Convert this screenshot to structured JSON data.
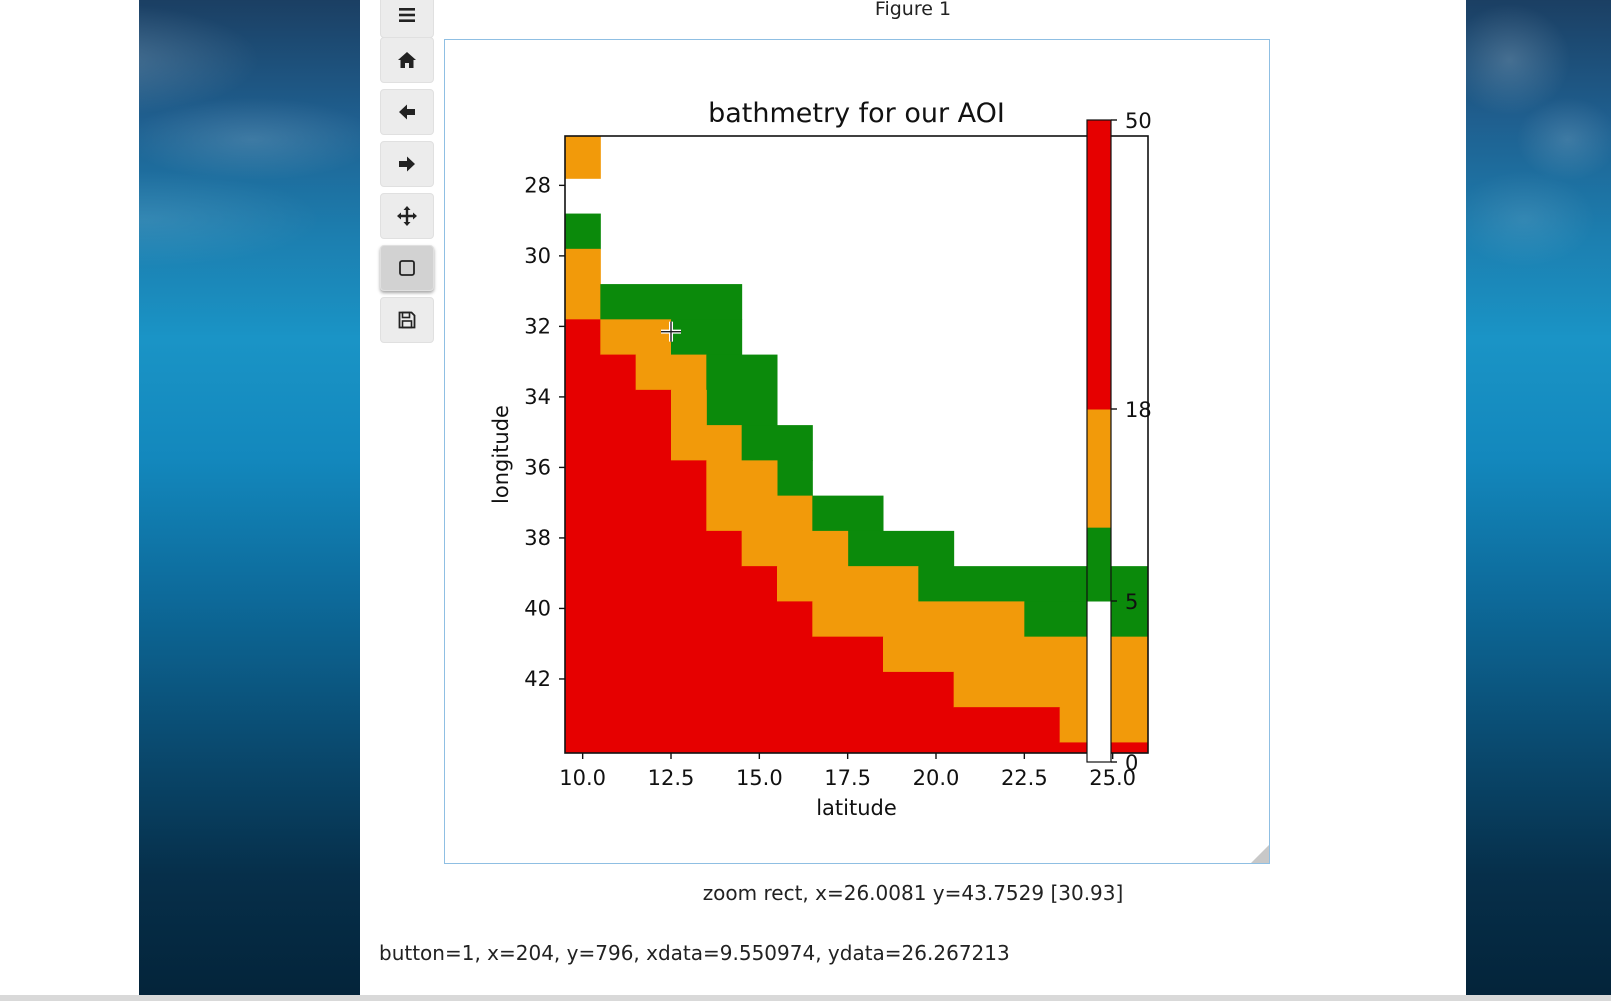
{
  "figure": {
    "title": "Figure 1",
    "zoom_status": "zoom rect, x=26.0081 y=43.7529 [30.93]",
    "event_line": "button=1, x=204, y=796, xdata=9.550974, ydata=26.267213"
  },
  "toolbar": {
    "buttons": [
      {
        "name": "menu",
        "icon": "menu-icon"
      },
      {
        "name": "home",
        "icon": "home-icon"
      },
      {
        "name": "back",
        "icon": "arrow-left-icon"
      },
      {
        "name": "forward",
        "icon": "arrow-right-icon"
      },
      {
        "name": "pan",
        "icon": "move-icon"
      },
      {
        "name": "zoom",
        "icon": "zoom-rect-icon",
        "active": true
      },
      {
        "name": "save",
        "icon": "save-icon"
      }
    ]
  },
  "colors": {
    "red": "#e60000",
    "orange": "#f29a0a",
    "green": "#0b8a0b",
    "white": "#ffffff",
    "accent_border": "#8fbfe3"
  },
  "chart_data": {
    "type": "heatmap",
    "title": "bathmetry for our AOI",
    "xlabel": "latitude",
    "ylabel": "longitude",
    "xlim": [
      9.5,
      26.0
    ],
    "ylim": [
      44.1,
      26.6
    ],
    "xticks": [
      10.0,
      12.5,
      15.0,
      17.5,
      20.0,
      22.5,
      25.0
    ],
    "xtick_labels": [
      "10.0",
      "12.5",
      "15.0",
      "17.5",
      "20.0",
      "22.5",
      "25.0"
    ],
    "yticks": [
      28,
      30,
      32,
      34,
      36,
      38,
      40,
      42
    ],
    "ytick_labels": [
      "28",
      "30",
      "32",
      "34",
      "36",
      "38",
      "40",
      "42"
    ],
    "category_colors": {
      "land": "#ffffff",
      "shallow": "#0b8a0b",
      "medium": "#f29a0a",
      "deep": "#e60000"
    },
    "regions": [
      {
        "cls": "medium",
        "x": [
          9.5,
          10.5
        ],
        "y": [
          26.6,
          27.8
        ]
      },
      {
        "cls": "shallow",
        "x": [
          9.5,
          10.5
        ],
        "y": [
          28.8,
          29.8
        ]
      },
      {
        "cls": "medium",
        "x": [
          9.5,
          10.5
        ],
        "y": [
          29.8,
          31.8
        ]
      },
      {
        "cls": "deep",
        "x": [
          9.5,
          10.5
        ],
        "y": [
          31.8,
          44.1
        ]
      },
      {
        "cls": "shallow",
        "x": [
          10.5,
          14.5
        ],
        "y": [
          30.8,
          31.8
        ]
      },
      {
        "cls": "medium",
        "x": [
          10.5,
          12.5
        ],
        "y": [
          31.8,
          32.8
        ]
      },
      {
        "cls": "deep",
        "x": [
          10.5,
          11.5
        ],
        "y": [
          32.8,
          44.1
        ]
      },
      {
        "cls": "shallow",
        "x": [
          12.5,
          14.5
        ],
        "y": [
          31.8,
          32.8
        ]
      },
      {
        "cls": "medium",
        "x": [
          11.5,
          13.5
        ],
        "y": [
          32.8,
          33.8
        ]
      },
      {
        "cls": "shallow",
        "x": [
          13.5,
          15.5
        ],
        "y": [
          32.8,
          34.8
        ]
      },
      {
        "cls": "deep",
        "x": [
          11.5,
          12.5
        ],
        "y": [
          33.8,
          44.1
        ]
      },
      {
        "cls": "medium",
        "x": [
          12.5,
          13.5
        ],
        "y": [
          33.8,
          35.8
        ]
      },
      {
        "cls": "medium",
        "x": [
          13.5,
          14.5
        ],
        "y": [
          34.8,
          35.8
        ]
      },
      {
        "cls": "shallow",
        "x": [
          14.5,
          16.5
        ],
        "y": [
          34.8,
          35.8
        ]
      },
      {
        "cls": "shallow",
        "x": [
          15.5,
          16.5
        ],
        "y": [
          35.8,
          36.8
        ]
      },
      {
        "cls": "deep",
        "x": [
          12.5,
          13.5
        ],
        "y": [
          35.8,
          44.1
        ]
      },
      {
        "cls": "medium",
        "x": [
          13.5,
          15.5
        ],
        "y": [
          35.8,
          37.8
        ]
      },
      {
        "cls": "medium",
        "x": [
          15.5,
          16.5
        ],
        "y": [
          36.8,
          37.8
        ]
      },
      {
        "cls": "shallow",
        "x": [
          16.5,
          18.5
        ],
        "y": [
          36.8,
          37.8
        ]
      },
      {
        "cls": "shallow",
        "x": [
          17.5,
          20.5
        ],
        "y": [
          37.8,
          38.8
        ]
      },
      {
        "cls": "deep",
        "x": [
          13.5,
          14.5
        ],
        "y": [
          37.8,
          44.1
        ]
      },
      {
        "cls": "medium",
        "x": [
          14.5,
          17.5
        ],
        "y": [
          37.8,
          38.8
        ]
      },
      {
        "cls": "deep",
        "x": [
          14.5,
          15.5
        ],
        "y": [
          38.8,
          44.1
        ]
      },
      {
        "cls": "medium",
        "x": [
          15.5,
          19.5
        ],
        "y": [
          38.8,
          39.8
        ]
      },
      {
        "cls": "shallow",
        "x": [
          19.5,
          26.0
        ],
        "y": [
          38.8,
          39.8
        ]
      },
      {
        "cls": "deep",
        "x": [
          15.5,
          16.5
        ],
        "y": [
          39.8,
          44.1
        ]
      },
      {
        "cls": "medium",
        "x": [
          16.5,
          22.5
        ],
        "y": [
          39.8,
          40.8
        ]
      },
      {
        "cls": "shallow",
        "x": [
          22.5,
          26.0
        ],
        "y": [
          39.8,
          40.8
        ]
      },
      {
        "cls": "deep",
        "x": [
          16.5,
          18.5
        ],
        "y": [
          40.8,
          44.1
        ]
      },
      {
        "cls": "medium",
        "x": [
          18.5,
          26.0
        ],
        "y": [
          40.8,
          41.8
        ]
      },
      {
        "cls": "deep",
        "x": [
          18.5,
          20.5
        ],
        "y": [
          41.8,
          44.1
        ]
      },
      {
        "cls": "medium",
        "x": [
          20.5,
          26.0
        ],
        "y": [
          41.8,
          42.8
        ]
      },
      {
        "cls": "deep",
        "x": [
          20.5,
          23.5
        ],
        "y": [
          42.8,
          44.1
        ]
      },
      {
        "cls": "medium",
        "x": [
          23.5,
          26.0
        ],
        "y": [
          42.8,
          43.8
        ]
      },
      {
        "cls": "deep",
        "x": [
          23.5,
          26.0
        ],
        "y": [
          43.8,
          44.1
        ]
      }
    ],
    "colorbar": {
      "ticks": [
        0,
        5,
        18,
        50
      ],
      "tick_labels": [
        "0",
        "5",
        "18",
        "50"
      ],
      "segments": [
        {
          "from": 0,
          "to": 5,
          "color": "#ffffff"
        },
        {
          "from": 5,
          "to": 10,
          "color": "#0b8a0b"
        },
        {
          "from": 10,
          "to": 18,
          "color": "#f29a0a"
        },
        {
          "from": 18,
          "to": 50,
          "color": "#e60000"
        }
      ]
    },
    "cursor": {
      "x": 12.5,
      "y": 32.15
    }
  }
}
